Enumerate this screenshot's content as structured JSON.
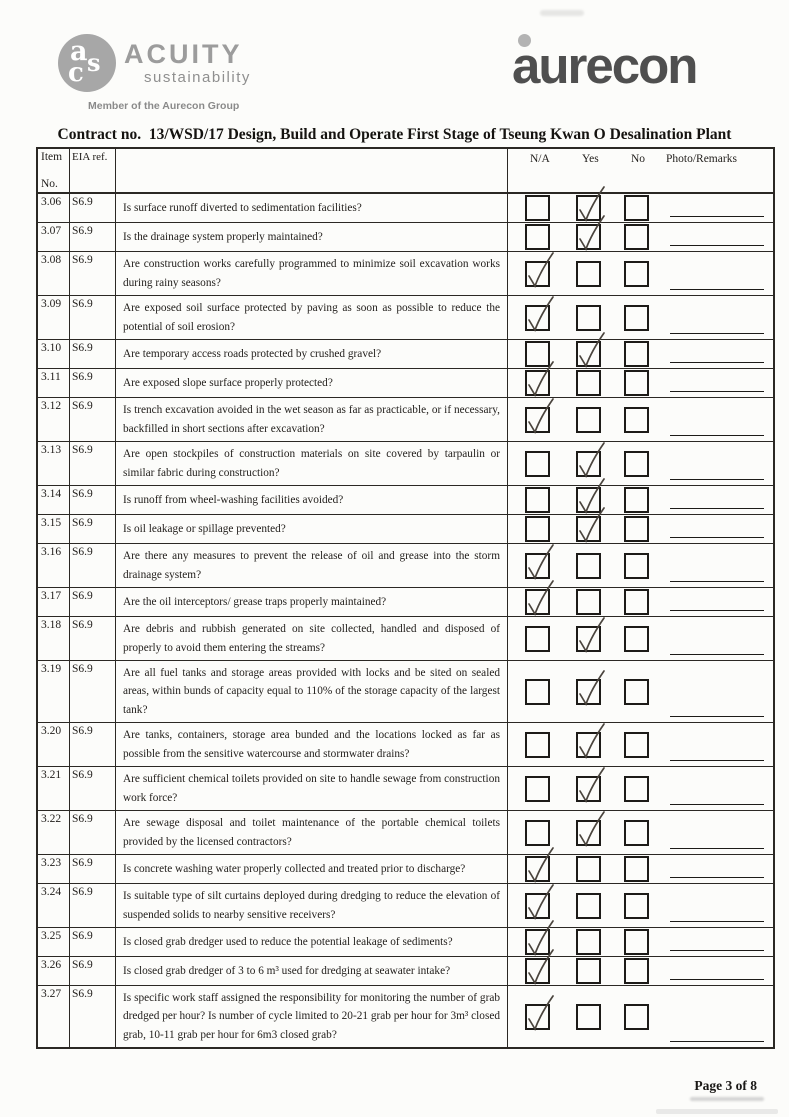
{
  "branding": {
    "acuity": {
      "monogram": {
        "letter1": "a",
        "letter2": "s",
        "letter3": "c"
      },
      "name": "ACUITY",
      "subtitle": "sustainability",
      "member_line": "Member of the Aurecon Group"
    },
    "aurecon": {
      "wordmark": "aurecon"
    }
  },
  "title": "Contract no.  13/WSD/17 Design, Build and Operate First Stage of Tseung Kwan O Desalination Plant",
  "table": {
    "columns": {
      "item_line1": "Item",
      "item_line2": "No.",
      "eia": "EIA ref.",
      "na": "N/A",
      "yes": "Yes",
      "no": "No",
      "remarks": "Photo/Remarks"
    },
    "rows": [
      {
        "item": "3.06",
        "eia": "S6.9",
        "question": "Is surface runoff diverted to sedimentation facilities?",
        "answer": "yes",
        "lines": 1
      },
      {
        "item": "3.07",
        "eia": "S6.9",
        "question": "Is the drainage system properly maintained?",
        "answer": "yes",
        "lines": 1
      },
      {
        "item": "3.08",
        "eia": "S6.9",
        "question": "Are construction works carefully programmed to minimize soil excavation works during rainy seasons?",
        "answer": "na",
        "lines": 2
      },
      {
        "item": "3.09",
        "eia": "S6.9",
        "question": "Are exposed soil surface protected by paving as soon as possible to reduce the potential of soil erosion?",
        "answer": "na",
        "lines": 2
      },
      {
        "item": "3.10",
        "eia": "S6.9",
        "question": "Are temporary access roads protected by crushed gravel?",
        "answer": "yes",
        "lines": 1
      },
      {
        "item": "3.11",
        "eia": "S6.9",
        "question": "Are exposed slope surface properly protected?",
        "answer": "na",
        "lines": 1
      },
      {
        "item": "3.12",
        "eia": "S6.9",
        "question": "Is trench excavation avoided in the wet season as far as practicable, or if necessary, backfilled in short sections after excavation?",
        "answer": "na",
        "lines": 2
      },
      {
        "item": "3.13",
        "eia": "S6.9",
        "question": "Are open stockpiles of construction materials on site covered by tarpaulin or similar fabric during construction?",
        "answer": "yes",
        "lines": 2
      },
      {
        "item": "3.14",
        "eia": "S6.9",
        "question": "Is runoff from wheel-washing facilities avoided?",
        "answer": "yes",
        "lines": 1
      },
      {
        "item": "3.15",
        "eia": "S6.9",
        "question": "Is oil leakage or spillage prevented?",
        "answer": "yes",
        "lines": 1
      },
      {
        "item": "3.16",
        "eia": "S6.9",
        "question": "Are there any measures to prevent the release of oil and grease into the storm drainage system?",
        "answer": "na",
        "lines": 2
      },
      {
        "item": "3.17",
        "eia": "S6.9",
        "question": "Are the oil interceptors/ grease traps properly maintained?",
        "answer": "na",
        "lines": 1
      },
      {
        "item": "3.18",
        "eia": "S6.9",
        "question": "Are debris and rubbish generated on site collected, handled and disposed of properly to avoid them entering the streams?",
        "answer": "yes",
        "lines": 2
      },
      {
        "item": "3.19",
        "eia": "S6.9",
        "question": "Are all fuel tanks and storage areas provided with locks and be sited on sealed areas, within bunds of capacity equal to 110% of the storage capacity of the largest tank?",
        "answer": "yes",
        "lines": 3
      },
      {
        "item": "3.20",
        "eia": "S6.9",
        "question": "Are tanks, containers, storage area bunded and the locations locked as far as possible from the sensitive watercourse and stormwater drains?",
        "answer": "yes",
        "lines": 2
      },
      {
        "item": "3.21",
        "eia": "S6.9",
        "question": "Are sufficient chemical toilets provided on site to handle sewage from construction work force?",
        "answer": "yes",
        "lines": 2
      },
      {
        "item": "3.22",
        "eia": "S6.9",
        "question": "Are sewage disposal and toilet maintenance of the portable chemical toilets provided by the licensed contractors?",
        "answer": "yes",
        "lines": 2
      },
      {
        "item": "3.23",
        "eia": "S6.9",
        "question": "Is concrete washing water properly collected and treated prior to discharge?",
        "answer": "na",
        "lines": 1
      },
      {
        "item": "3.24",
        "eia": "S6.9",
        "question": "Is suitable type of silt curtains deployed during dredging to reduce the elevation of suspended solids to nearby sensitive receivers?",
        "answer": "na",
        "lines": 2
      },
      {
        "item": "3.25",
        "eia": "S6.9",
        "question": "Is closed grab dredger used to reduce the potential leakage of sediments?",
        "answer": "na",
        "lines": 1
      },
      {
        "item": "3.26",
        "eia": "S6.9",
        "question": "Is closed grab dredger of 3 to 6 m³ used for dredging at seawater intake?",
        "answer": "na",
        "lines": 1
      },
      {
        "item": "3.27",
        "eia": "S6.9",
        "question": "Is specific work staff assigned the responsibility for monitoring the number of grab dredged per hour? Is number of cycle limited to 20-21 grab per hour for 3m³ closed grab, 10-11 grab per hour for 6m3 closed grab?",
        "answer": "na",
        "lines": 3
      }
    ]
  },
  "footer": {
    "page_label": "Page 3 of 8"
  },
  "colors": {
    "ink": "#201d1a",
    "border": "#2b2824",
    "check_ink": "#4a443d",
    "logo_gray": "#9c9c9c",
    "aurecon_gray": "#4f4f4f"
  }
}
